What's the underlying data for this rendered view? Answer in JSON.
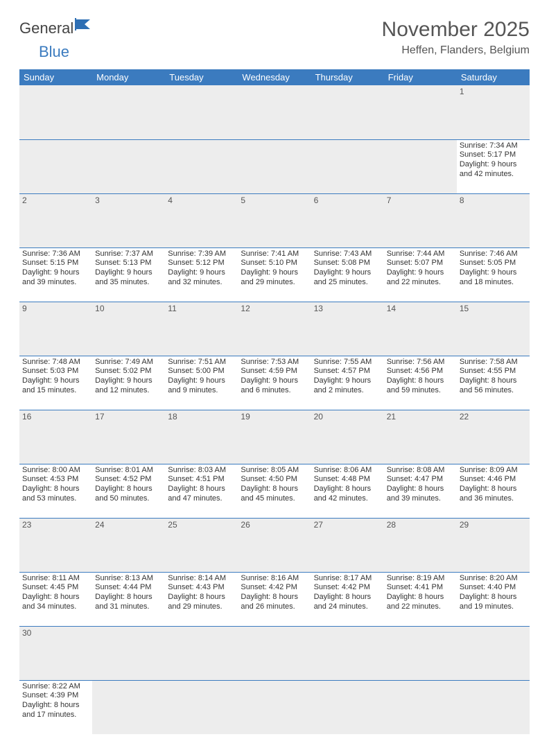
{
  "brand": {
    "part1": "General",
    "part2": "Blue"
  },
  "title": "November 2025",
  "location": "Heffen, Flanders, Belgium",
  "layout": {
    "header_bg": "#3b7bbf",
    "header_text": "#ffffff",
    "daynum_bg": "#ededed",
    "cell_border": "#3b7bbf",
    "font_family": "Arial",
    "title_fontsize": 30,
    "location_fontsize": 16,
    "header_fontsize": 13,
    "cell_fontsize": 11
  },
  "weekdays": [
    "Sunday",
    "Monday",
    "Tuesday",
    "Wednesday",
    "Thursday",
    "Friday",
    "Saturday"
  ],
  "weeks": [
    [
      null,
      null,
      null,
      null,
      null,
      null,
      {
        "n": "1",
        "sunrise": "Sunrise: 7:34 AM",
        "sunset": "Sunset: 5:17 PM",
        "daylight": "Daylight: 9 hours and 42 minutes."
      }
    ],
    [
      {
        "n": "2",
        "sunrise": "Sunrise: 7:36 AM",
        "sunset": "Sunset: 5:15 PM",
        "daylight": "Daylight: 9 hours and 39 minutes."
      },
      {
        "n": "3",
        "sunrise": "Sunrise: 7:37 AM",
        "sunset": "Sunset: 5:13 PM",
        "daylight": "Daylight: 9 hours and 35 minutes."
      },
      {
        "n": "4",
        "sunrise": "Sunrise: 7:39 AM",
        "sunset": "Sunset: 5:12 PM",
        "daylight": "Daylight: 9 hours and 32 minutes."
      },
      {
        "n": "5",
        "sunrise": "Sunrise: 7:41 AM",
        "sunset": "Sunset: 5:10 PM",
        "daylight": "Daylight: 9 hours and 29 minutes."
      },
      {
        "n": "6",
        "sunrise": "Sunrise: 7:43 AM",
        "sunset": "Sunset: 5:08 PM",
        "daylight": "Daylight: 9 hours and 25 minutes."
      },
      {
        "n": "7",
        "sunrise": "Sunrise: 7:44 AM",
        "sunset": "Sunset: 5:07 PM",
        "daylight": "Daylight: 9 hours and 22 minutes."
      },
      {
        "n": "8",
        "sunrise": "Sunrise: 7:46 AM",
        "sunset": "Sunset: 5:05 PM",
        "daylight": "Daylight: 9 hours and 18 minutes."
      }
    ],
    [
      {
        "n": "9",
        "sunrise": "Sunrise: 7:48 AM",
        "sunset": "Sunset: 5:03 PM",
        "daylight": "Daylight: 9 hours and 15 minutes."
      },
      {
        "n": "10",
        "sunrise": "Sunrise: 7:49 AM",
        "sunset": "Sunset: 5:02 PM",
        "daylight": "Daylight: 9 hours and 12 minutes."
      },
      {
        "n": "11",
        "sunrise": "Sunrise: 7:51 AM",
        "sunset": "Sunset: 5:00 PM",
        "daylight": "Daylight: 9 hours and 9 minutes."
      },
      {
        "n": "12",
        "sunrise": "Sunrise: 7:53 AM",
        "sunset": "Sunset: 4:59 PM",
        "daylight": "Daylight: 9 hours and 6 minutes."
      },
      {
        "n": "13",
        "sunrise": "Sunrise: 7:55 AM",
        "sunset": "Sunset: 4:57 PM",
        "daylight": "Daylight: 9 hours and 2 minutes."
      },
      {
        "n": "14",
        "sunrise": "Sunrise: 7:56 AM",
        "sunset": "Sunset: 4:56 PM",
        "daylight": "Daylight: 8 hours and 59 minutes."
      },
      {
        "n": "15",
        "sunrise": "Sunrise: 7:58 AM",
        "sunset": "Sunset: 4:55 PM",
        "daylight": "Daylight: 8 hours and 56 minutes."
      }
    ],
    [
      {
        "n": "16",
        "sunrise": "Sunrise: 8:00 AM",
        "sunset": "Sunset: 4:53 PM",
        "daylight": "Daylight: 8 hours and 53 minutes."
      },
      {
        "n": "17",
        "sunrise": "Sunrise: 8:01 AM",
        "sunset": "Sunset: 4:52 PM",
        "daylight": "Daylight: 8 hours and 50 minutes."
      },
      {
        "n": "18",
        "sunrise": "Sunrise: 8:03 AM",
        "sunset": "Sunset: 4:51 PM",
        "daylight": "Daylight: 8 hours and 47 minutes."
      },
      {
        "n": "19",
        "sunrise": "Sunrise: 8:05 AM",
        "sunset": "Sunset: 4:50 PM",
        "daylight": "Daylight: 8 hours and 45 minutes."
      },
      {
        "n": "20",
        "sunrise": "Sunrise: 8:06 AM",
        "sunset": "Sunset: 4:48 PM",
        "daylight": "Daylight: 8 hours and 42 minutes."
      },
      {
        "n": "21",
        "sunrise": "Sunrise: 8:08 AM",
        "sunset": "Sunset: 4:47 PM",
        "daylight": "Daylight: 8 hours and 39 minutes."
      },
      {
        "n": "22",
        "sunrise": "Sunrise: 8:09 AM",
        "sunset": "Sunset: 4:46 PM",
        "daylight": "Daylight: 8 hours and 36 minutes."
      }
    ],
    [
      {
        "n": "23",
        "sunrise": "Sunrise: 8:11 AM",
        "sunset": "Sunset: 4:45 PM",
        "daylight": "Daylight: 8 hours and 34 minutes."
      },
      {
        "n": "24",
        "sunrise": "Sunrise: 8:13 AM",
        "sunset": "Sunset: 4:44 PM",
        "daylight": "Daylight: 8 hours and 31 minutes."
      },
      {
        "n": "25",
        "sunrise": "Sunrise: 8:14 AM",
        "sunset": "Sunset: 4:43 PM",
        "daylight": "Daylight: 8 hours and 29 minutes."
      },
      {
        "n": "26",
        "sunrise": "Sunrise: 8:16 AM",
        "sunset": "Sunset: 4:42 PM",
        "daylight": "Daylight: 8 hours and 26 minutes."
      },
      {
        "n": "27",
        "sunrise": "Sunrise: 8:17 AM",
        "sunset": "Sunset: 4:42 PM",
        "daylight": "Daylight: 8 hours and 24 minutes."
      },
      {
        "n": "28",
        "sunrise": "Sunrise: 8:19 AM",
        "sunset": "Sunset: 4:41 PM",
        "daylight": "Daylight: 8 hours and 22 minutes."
      },
      {
        "n": "29",
        "sunrise": "Sunrise: 8:20 AM",
        "sunset": "Sunset: 4:40 PM",
        "daylight": "Daylight: 8 hours and 19 minutes."
      }
    ],
    [
      {
        "n": "30",
        "sunrise": "Sunrise: 8:22 AM",
        "sunset": "Sunset: 4:39 PM",
        "daylight": "Daylight: 8 hours and 17 minutes."
      },
      null,
      null,
      null,
      null,
      null,
      null
    ]
  ]
}
